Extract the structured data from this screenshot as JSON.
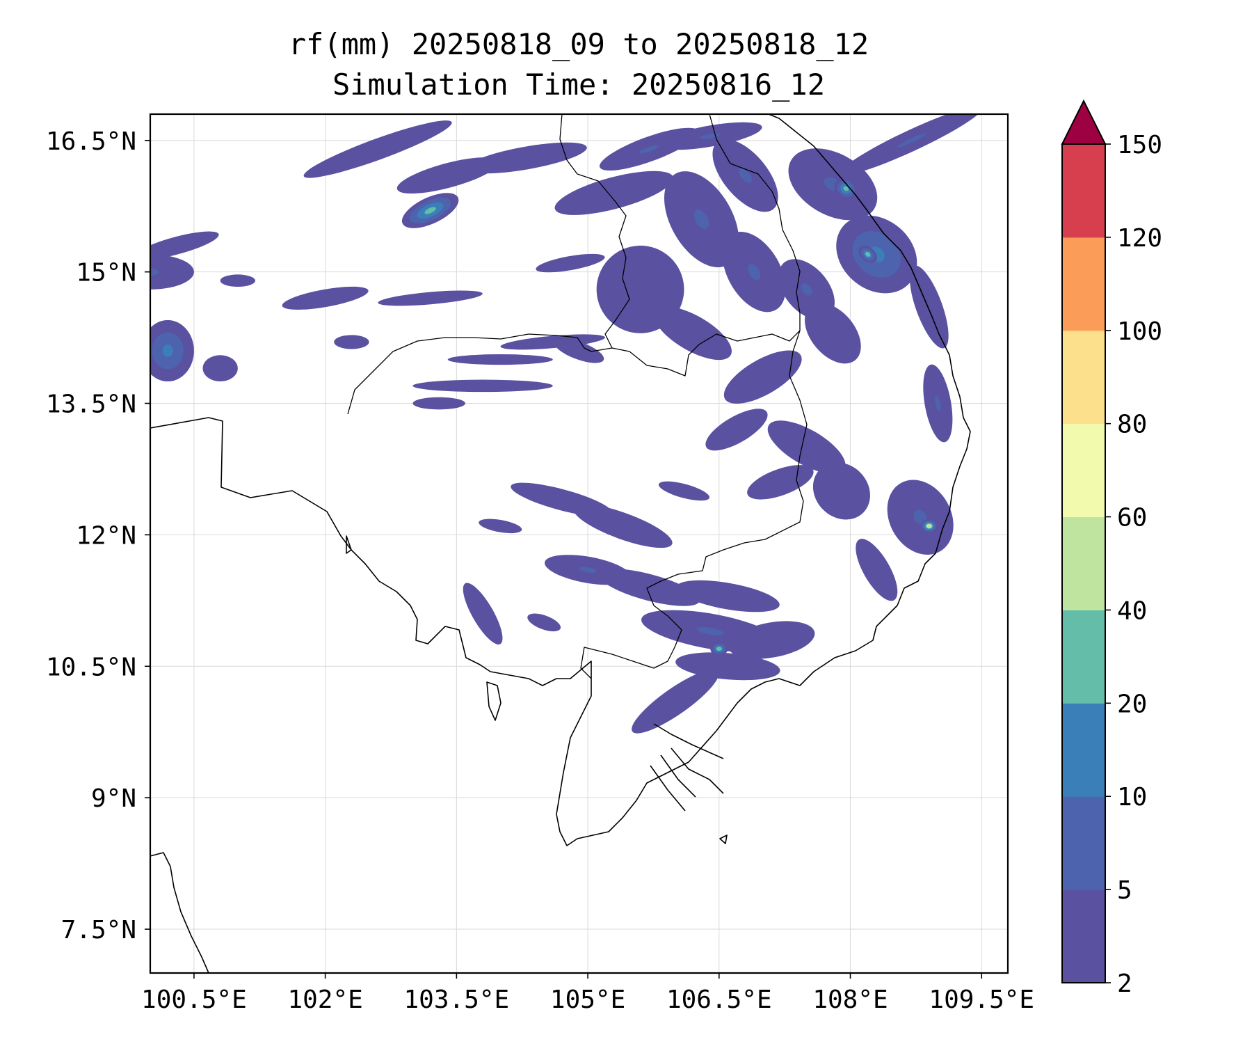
{
  "title": {
    "line1": "rf(mm) 20250818_09 to 20250818_12",
    "line2": "Simulation Time: 20250816_12"
  },
  "map": {
    "lon_range": [
      100.0,
      109.8
    ],
    "lat_range": [
      7.0,
      16.8
    ],
    "lon_ticks": [
      {
        "value": 100.5,
        "label": "100.5°E"
      },
      {
        "value": 102.0,
        "label": "102°E"
      },
      {
        "value": 103.5,
        "label": "103.5°E"
      },
      {
        "value": 105.0,
        "label": "105°E"
      },
      {
        "value": 106.5,
        "label": "106.5°E"
      },
      {
        "value": 108.0,
        "label": "108°E"
      },
      {
        "value": 109.5,
        "label": "109.5°E"
      }
    ],
    "lat_ticks": [
      {
        "value": 16.5,
        "label": "16.5°N"
      },
      {
        "value": 15.0,
        "label": "15°N"
      },
      {
        "value": 13.5,
        "label": "13.5°N"
      },
      {
        "value": 12.0,
        "label": "12°N"
      },
      {
        "value": 10.5,
        "label": "10.5°N"
      },
      {
        "value": 9.0,
        "label": "9°N"
      },
      {
        "value": 7.5,
        "label": "7.5°N"
      }
    ],
    "grid": true,
    "features": [
      "coastlines",
      "country-borders"
    ]
  },
  "colorbar": {
    "levels": [
      {
        "label": "2",
        "color": "#5a51a1"
      },
      {
        "label": "5",
        "color": "#4d63ad"
      },
      {
        "label": "10",
        "color": "#3b7fb9"
      },
      {
        "label": "20",
        "color": "#63bda9"
      },
      {
        "label": "40",
        "color": "#bfe4a0"
      },
      {
        "label": "60",
        "color": "#f2faad"
      },
      {
        "label": "80",
        "color": "#fde08c"
      },
      {
        "label": "100",
        "color": "#fb9d59"
      },
      {
        "label": "120",
        "color": "#d73f4f"
      },
      {
        "label": "150",
        "color": ""
      }
    ],
    "extend_color": "#9e0142",
    "extend": "max"
  },
  "rain_features": [
    {
      "lon": 103.2,
      "lat": 15.7,
      "rx": 0.35,
      "ry": 0.15,
      "rot": -25,
      "lvl": 3
    },
    {
      "lon": 102.6,
      "lat": 16.4,
      "rx": 0.9,
      "ry": 0.12,
      "rot": -20,
      "lvl": 0
    },
    {
      "lon": 103.4,
      "lat": 16.1,
      "rx": 0.6,
      "ry": 0.14,
      "rot": -15,
      "lvl": 0
    },
    {
      "lon": 104.3,
      "lat": 16.3,
      "rx": 0.7,
      "ry": 0.13,
      "rot": -10,
      "lvl": 0
    },
    {
      "lon": 100.0,
      "lat": 15.0,
      "rx": 0.5,
      "ry": 0.2,
      "rot": 0,
      "lvl": 1
    },
    {
      "lon": 100.3,
      "lat": 15.3,
      "rx": 0.5,
      "ry": 0.1,
      "rot": -15,
      "lvl": 0
    },
    {
      "lon": 100.2,
      "lat": 14.1,
      "rx": 0.3,
      "ry": 0.35,
      "rot": 0,
      "lvl": 2
    },
    {
      "lon": 100.8,
      "lat": 13.9,
      "rx": 0.2,
      "ry": 0.15,
      "rot": 0,
      "lvl": 0
    },
    {
      "lon": 102.0,
      "lat": 14.7,
      "rx": 0.5,
      "ry": 0.1,
      "rot": -10,
      "lvl": 0
    },
    {
      "lon": 103.2,
      "lat": 14.7,
      "rx": 0.6,
      "ry": 0.07,
      "rot": -5,
      "lvl": 0
    },
    {
      "lon": 104.6,
      "lat": 14.2,
      "rx": 0.6,
      "ry": 0.07,
      "rot": -5,
      "lvl": 0
    },
    {
      "lon": 103.8,
      "lat": 13.7,
      "rx": 0.8,
      "ry": 0.07,
      "rot": 0,
      "lvl": 0
    },
    {
      "lon": 104.0,
      "lat": 14.0,
      "rx": 0.6,
      "ry": 0.06,
      "rot": 0,
      "lvl": 0
    },
    {
      "lon": 105.3,
      "lat": 15.9,
      "rx": 0.7,
      "ry": 0.18,
      "rot": -15,
      "lvl": 0
    },
    {
      "lon": 105.7,
      "lat": 16.4,
      "rx": 0.6,
      "ry": 0.14,
      "rot": -20,
      "lvl": 1
    },
    {
      "lon": 106.4,
      "lat": 16.55,
      "rx": 0.6,
      "ry": 0.12,
      "rot": -10,
      "lvl": 1
    },
    {
      "lon": 105.6,
      "lat": 14.8,
      "rx": 0.5,
      "ry": 0.5,
      "rot": 20,
      "lvl": 0
    },
    {
      "lon": 106.3,
      "lat": 15.6,
      "rx": 0.6,
      "ry": 0.35,
      "rot": 60,
      "lvl": 1
    },
    {
      "lon": 106.9,
      "lat": 15.0,
      "rx": 0.5,
      "ry": 0.3,
      "rot": 60,
      "lvl": 1
    },
    {
      "lon": 106.8,
      "lat": 16.1,
      "rx": 0.5,
      "ry": 0.25,
      "rot": 50,
      "lvl": 1
    },
    {
      "lon": 106.2,
      "lat": 14.3,
      "rx": 0.5,
      "ry": 0.2,
      "rot": 30,
      "lvl": 0
    },
    {
      "lon": 107.0,
      "lat": 13.8,
      "rx": 0.5,
      "ry": 0.2,
      "rot": -30,
      "lvl": 0
    },
    {
      "lon": 106.7,
      "lat": 13.2,
      "rx": 0.4,
      "ry": 0.15,
      "rot": -30,
      "lvl": 0
    },
    {
      "lon": 107.8,
      "lat": 16.0,
      "rx": 0.55,
      "ry": 0.35,
      "rot": 30,
      "lvl": 1
    },
    {
      "lon": 107.95,
      "lat": 15.95,
      "rx": 0.14,
      "ry": 0.12,
      "rot": 30,
      "lvl": 3
    },
    {
      "lon": 108.3,
      "lat": 15.2,
      "rx": 0.5,
      "ry": 0.4,
      "rot": 40,
      "lvl": 2
    },
    {
      "lon": 108.2,
      "lat": 15.2,
      "rx": 0.12,
      "ry": 0.08,
      "rot": 40,
      "lvl": 3
    },
    {
      "lon": 108.7,
      "lat": 16.5,
      "rx": 0.9,
      "ry": 0.12,
      "rot": -25,
      "lvl": 1
    },
    {
      "lon": 107.5,
      "lat": 14.8,
      "rx": 0.4,
      "ry": 0.25,
      "rot": 50,
      "lvl": 1
    },
    {
      "lon": 107.8,
      "lat": 14.3,
      "rx": 0.4,
      "ry": 0.25,
      "rot": 50,
      "lvl": 0
    },
    {
      "lon": 108.9,
      "lat": 14.6,
      "rx": 0.5,
      "ry": 0.15,
      "rot": 70,
      "lvl": 0
    },
    {
      "lon": 109.0,
      "lat": 13.5,
      "rx": 0.45,
      "ry": 0.15,
      "rot": 80,
      "lvl": 1
    },
    {
      "lon": 108.8,
      "lat": 12.2,
      "rx": 0.45,
      "ry": 0.35,
      "rot": 60,
      "lvl": 1
    },
    {
      "lon": 108.9,
      "lat": 12.1,
      "rx": 0.1,
      "ry": 0.08,
      "rot": 0,
      "lvl": 4
    },
    {
      "lon": 107.5,
      "lat": 13.0,
      "rx": 0.5,
      "ry": 0.2,
      "rot": 30,
      "lvl": 0
    },
    {
      "lon": 107.2,
      "lat": 12.6,
      "rx": 0.4,
      "ry": 0.15,
      "rot": -20,
      "lvl": 0
    },
    {
      "lon": 107.9,
      "lat": 12.5,
      "rx": 0.35,
      "ry": 0.3,
      "rot": 45,
      "lvl": 0
    },
    {
      "lon": 108.3,
      "lat": 11.6,
      "rx": 0.4,
      "ry": 0.15,
      "rot": 60,
      "lvl": 0
    },
    {
      "lon": 104.7,
      "lat": 12.4,
      "rx": 0.6,
      "ry": 0.12,
      "rot": 15,
      "lvl": 0
    },
    {
      "lon": 105.4,
      "lat": 12.1,
      "rx": 0.6,
      "ry": 0.15,
      "rot": 20,
      "lvl": 0
    },
    {
      "lon": 105.0,
      "lat": 11.6,
      "rx": 0.5,
      "ry": 0.15,
      "rot": 10,
      "lvl": 1
    },
    {
      "lon": 105.7,
      "lat": 11.4,
      "rx": 0.6,
      "ry": 0.15,
      "rot": 15,
      "lvl": 0
    },
    {
      "lon": 106.6,
      "lat": 11.3,
      "rx": 0.6,
      "ry": 0.15,
      "rot": 10,
      "lvl": 0
    },
    {
      "lon": 106.4,
      "lat": 10.9,
      "rx": 0.8,
      "ry": 0.2,
      "rot": 10,
      "lvl": 1
    },
    {
      "lon": 107.1,
      "lat": 10.8,
      "rx": 0.5,
      "ry": 0.2,
      "rot": -10,
      "lvl": 0
    },
    {
      "lon": 106.6,
      "lat": 10.5,
      "rx": 0.6,
      "ry": 0.15,
      "rot": 5,
      "lvl": 0
    },
    {
      "lon": 106.0,
      "lat": 10.1,
      "rx": 0.6,
      "ry": 0.15,
      "rot": -35,
      "lvl": 0
    },
    {
      "lon": 106.5,
      "lat": 10.7,
      "rx": 0.1,
      "ry": 0.08,
      "rot": 0,
      "lvl": 3
    },
    {
      "lon": 103.8,
      "lat": 11.1,
      "rx": 0.4,
      "ry": 0.12,
      "rot": 60,
      "lvl": 0
    },
    {
      "lon": 104.5,
      "lat": 11.0,
      "rx": 0.2,
      "ry": 0.08,
      "rot": 20,
      "lvl": 0
    },
    {
      "lon": 106.1,
      "lat": 12.5,
      "rx": 0.3,
      "ry": 0.08,
      "rot": 15,
      "lvl": 0
    },
    {
      "lon": 104.0,
      "lat": 12.1,
      "rx": 0.25,
      "ry": 0.07,
      "rot": 10,
      "lvl": 0
    },
    {
      "lon": 103.3,
      "lat": 13.5,
      "rx": 0.3,
      "ry": 0.07,
      "rot": 0,
      "lvl": 0
    },
    {
      "lon": 102.3,
      "lat": 14.2,
      "rx": 0.2,
      "ry": 0.08,
      "rot": 0,
      "lvl": 0
    },
    {
      "lon": 101.0,
      "lat": 14.9,
      "rx": 0.2,
      "ry": 0.07,
      "rot": 0,
      "lvl": 0
    },
    {
      "lon": 104.8,
      "lat": 15.1,
      "rx": 0.4,
      "ry": 0.08,
      "rot": -10,
      "lvl": 0
    },
    {
      "lon": 104.9,
      "lat": 14.1,
      "rx": 0.3,
      "ry": 0.1,
      "rot": 20,
      "lvl": 0
    }
  ]
}
